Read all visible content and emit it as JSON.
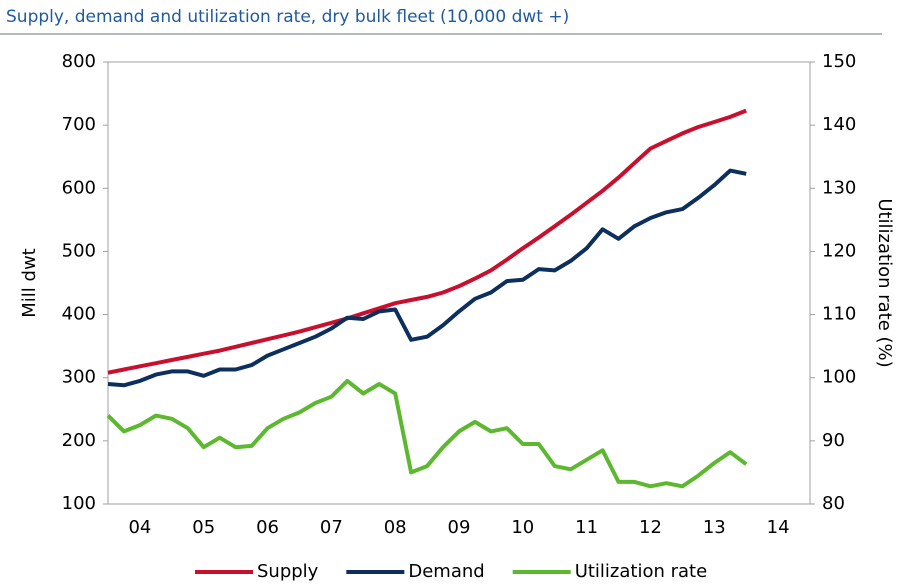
{
  "chart_data": {
    "type": "line",
    "title": "Supply, demand and utilization rate, dry bulk fleet (10,000 dwt +)",
    "y_label": "Mill dwt",
    "y2_label": "Utilization rate (%)",
    "x": [
      2004,
      2004.25,
      2004.5,
      2004.75,
      2005,
      2005.25,
      2005.5,
      2005.75,
      2006,
      2006.25,
      2006.5,
      2006.75,
      2007,
      2007.25,
      2007.5,
      2007.75,
      2008,
      2008.25,
      2008.5,
      2008.75,
      2009,
      2009.25,
      2009.5,
      2009.75,
      2010,
      2010.25,
      2010.5,
      2010.75,
      2011,
      2011.25,
      2011.5,
      2011.75,
      2012,
      2012.25,
      2012.5,
      2012.75,
      2013,
      2013.25,
      2013.5,
      2013.75,
      2014
    ],
    "xlim": [
      2004,
      2015
    ],
    "xticks": [
      {
        "value": 2004.5,
        "label": "04"
      },
      {
        "value": 2005.5,
        "label": "05"
      },
      {
        "value": 2006.5,
        "label": "06"
      },
      {
        "value": 2007.5,
        "label": "07"
      },
      {
        "value": 2008.5,
        "label": "08"
      },
      {
        "value": 2009.5,
        "label": "09"
      },
      {
        "value": 2010.5,
        "label": "10"
      },
      {
        "value": 2011.5,
        "label": "11"
      },
      {
        "value": 2012.5,
        "label": "12"
      },
      {
        "value": 2013.5,
        "label": "13"
      },
      {
        "value": 2014.5,
        "label": "14"
      }
    ],
    "ylim": [
      100,
      800
    ],
    "yticks": [
      100,
      200,
      300,
      400,
      500,
      600,
      700,
      800
    ],
    "y2lim": [
      80,
      150
    ],
    "y2ticks": [
      80,
      90,
      100,
      110,
      120,
      130,
      140,
      150
    ],
    "series": [
      {
        "name": "Supply",
        "color": "#c8102e",
        "values": [
          308,
          313,
          318,
          323,
          328,
          333,
          338,
          343,
          349,
          355,
          361,
          367,
          373,
          380,
          387,
          394,
          402,
          410,
          418,
          423,
          428,
          435,
          445,
          457,
          470,
          487,
          505,
          522,
          540,
          558,
          577,
          596,
          617,
          640,
          663,
          675,
          687,
          697,
          705,
          713,
          723
        ]
      },
      {
        "name": "Demand",
        "color": "#0d2f5e",
        "values": [
          290,
          288,
          295,
          305,
          310,
          310,
          303,
          313,
          313,
          320,
          335,
          345,
          355,
          365,
          378,
          395,
          393,
          405,
          408,
          360,
          365,
          383,
          405,
          425,
          435,
          453,
          455,
          472,
          470,
          485,
          505,
          535,
          520,
          540,
          553,
          562,
          567,
          585,
          605,
          628,
          623
        ]
      },
      {
        "name": "Utilization rate",
        "color": "#5cb82e",
        "axis": "y2",
        "values": [
          94,
          91.5,
          92.5,
          94,
          93.5,
          92,
          89,
          90.5,
          89,
          89.2,
          92,
          93.5,
          94.5,
          96,
          97,
          99.5,
          97.5,
          99,
          97.5,
          85,
          86,
          89,
          91.5,
          93,
          91.5,
          92,
          89.5,
          89.5,
          86,
          85.5,
          87,
          88.5,
          83.5,
          83.5,
          82.8,
          83.3,
          82.8,
          84.5,
          86.5,
          88.2,
          86.3
        ]
      }
    ]
  }
}
